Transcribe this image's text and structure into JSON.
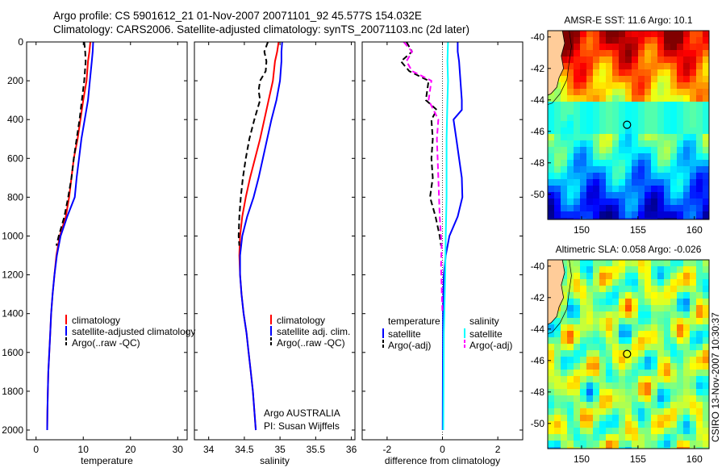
{
  "figure": {
    "title_line1": "Argo profile: CS 5901612_21 01-Nov-2007 20071101_92 45.577S 154.032E",
    "title_line2": "Climatology: CARS2006. Satellite-adjusted climatology: synTS_20071103.nc (2d later)",
    "side_label": "CSIRO 13-Nov-2007 10:30:37",
    "colors": {
      "climatology": "#ff0000",
      "satellite": "#0000ff",
      "argo": "#000000",
      "sal_satellite": "#00ffff",
      "sal_argo": "#ff00ff",
      "coast": "#ffcc99"
    }
  },
  "chart_data": [
    {
      "type": "line",
      "xlabel": "temperature",
      "xticks": [
        0,
        10,
        20,
        30
      ],
      "xlim": [
        -2,
        32
      ],
      "yticks": [
        0,
        200,
        400,
        600,
        800,
        1000,
        1200,
        1400,
        1600,
        1800,
        2000
      ],
      "ylim": [
        2050,
        0
      ],
      "y_reversed": true,
      "legend": [
        "climatology",
        "satellite-adjusted climatology",
        "Argo(..raw -QC)"
      ],
      "series": [
        {
          "name": "climatology",
          "color": "#ff0000",
          "style": "solid",
          "points": [
            [
              11.5,
              0
            ],
            [
              11.3,
              50
            ],
            [
              11.0,
              100
            ],
            [
              10.7,
              200
            ],
            [
              10.0,
              300
            ],
            [
              9.4,
              400
            ],
            [
              8.8,
              500
            ],
            [
              8.0,
              600
            ],
            [
              7.5,
              700
            ],
            [
              7.0,
              800
            ],
            [
              6.3,
              900
            ],
            [
              5.0,
              1000
            ],
            [
              4.3,
              1100
            ],
            [
              3.9,
              1200
            ],
            [
              3.5,
              1300
            ],
            [
              3.2,
              1400
            ],
            [
              3.0,
              1500
            ],
            [
              2.8,
              1600
            ],
            [
              2.6,
              1700
            ],
            [
              2.5,
              1800
            ],
            [
              2.4,
              1900
            ],
            [
              2.35,
              2000
            ]
          ]
        },
        {
          "name": "satellite-adjusted climatology",
          "color": "#0000ff",
          "style": "solid",
          "points": [
            [
              12.1,
              0
            ],
            [
              12.0,
              50
            ],
            [
              11.8,
              100
            ],
            [
              11.4,
              200
            ],
            [
              11.0,
              300
            ],
            [
              10.3,
              400
            ],
            [
              9.6,
              500
            ],
            [
              9.1,
              600
            ],
            [
              8.6,
              700
            ],
            [
              8.2,
              800
            ],
            [
              6.6,
              900
            ],
            [
              5.2,
              1000
            ],
            [
              4.4,
              1100
            ],
            [
              3.9,
              1200
            ],
            [
              3.5,
              1300
            ],
            [
              3.2,
              1400
            ],
            [
              3.0,
              1500
            ],
            [
              2.8,
              1600
            ],
            [
              2.6,
              1700
            ],
            [
              2.5,
              1800
            ],
            [
              2.4,
              1900
            ],
            [
              2.35,
              2000
            ]
          ]
        },
        {
          "name": "Argo(..raw -QC)",
          "color": "#000000",
          "style": "dashed",
          "points": [
            [
              10.2,
              0
            ],
            [
              10.4,
              50
            ],
            [
              10.5,
              100
            ],
            [
              10.2,
              200
            ],
            [
              9.7,
              300
            ],
            [
              9.2,
              400
            ],
            [
              8.6,
              500
            ],
            [
              8.0,
              600
            ],
            [
              7.5,
              700
            ],
            [
              6.8,
              800
            ],
            [
              6.0,
              900
            ],
            [
              4.8,
              1000
            ],
            [
              4.3,
              1050
            ]
          ]
        }
      ]
    },
    {
      "type": "line",
      "xlabel": "salinity",
      "xticks": [
        34,
        34.5,
        35,
        35.5,
        36
      ],
      "xlim": [
        33.8,
        36.05
      ],
      "yticks": [
        0,
        200,
        400,
        600,
        800,
        1000,
        1200,
        1400,
        1600,
        1800,
        2000
      ],
      "ylim": [
        2050,
        0
      ],
      "y_reversed": true,
      "legend": [
        "climatology",
        "satellite adj. clim.",
        "Argo(..raw -QC)"
      ],
      "annotations": [
        "Argo AUSTRALIA",
        "PI: Susan Wijffels"
      ],
      "series": [
        {
          "name": "climatology",
          "color": "#ff0000",
          "style": "solid",
          "points": [
            [
              34.98,
              0
            ],
            [
              34.96,
              50
            ],
            [
              34.93,
              100
            ],
            [
              34.9,
              200
            ],
            [
              34.84,
              300
            ],
            [
              34.78,
              400
            ],
            [
              34.72,
              500
            ],
            [
              34.65,
              600
            ],
            [
              34.58,
              700
            ],
            [
              34.52,
              800
            ],
            [
              34.47,
              900
            ],
            [
              34.44,
              1000
            ],
            [
              34.43,
              1100
            ],
            [
              34.44,
              1200
            ],
            [
              34.46,
              1300
            ],
            [
              34.49,
              1400
            ],
            [
              34.53,
              1500
            ],
            [
              34.56,
              1600
            ],
            [
              34.59,
              1700
            ],
            [
              34.62,
              1800
            ],
            [
              34.64,
              1900
            ],
            [
              34.66,
              2000
            ]
          ]
        },
        {
          "name": "satellite adj. clim.",
          "color": "#0000ff",
          "style": "solid",
          "points": [
            [
              35.03,
              0
            ],
            [
              35.02,
              50
            ],
            [
              35.02,
              100
            ],
            [
              35.0,
              200
            ],
            [
              34.95,
              300
            ],
            [
              34.88,
              400
            ],
            [
              34.82,
              500
            ],
            [
              34.76,
              600
            ],
            [
              34.7,
              700
            ],
            [
              34.63,
              800
            ],
            [
              34.54,
              900
            ],
            [
              34.47,
              1000
            ],
            [
              34.44,
              1100
            ],
            [
              34.44,
              1200
            ],
            [
              34.46,
              1300
            ],
            [
              34.49,
              1400
            ],
            [
              34.53,
              1500
            ],
            [
              34.56,
              1600
            ],
            [
              34.59,
              1700
            ],
            [
              34.62,
              1800
            ],
            [
              34.64,
              1900
            ],
            [
              34.66,
              2000
            ]
          ]
        },
        {
          "name": "Argo(..raw -QC)",
          "color": "#000000",
          "style": "dashed",
          "points": [
            [
              34.83,
              0
            ],
            [
              34.78,
              50
            ],
            [
              34.81,
              100
            ],
            [
              34.8,
              150
            ],
            [
              34.72,
              200
            ],
            [
              34.7,
              250
            ],
            [
              34.72,
              300
            ],
            [
              34.64,
              400
            ],
            [
              34.57,
              500
            ],
            [
              34.52,
              600
            ],
            [
              34.48,
              700
            ],
            [
              34.45,
              800
            ],
            [
              34.43,
              900
            ],
            [
              34.42,
              1000
            ],
            [
              34.43,
              1050
            ]
          ]
        }
      ]
    },
    {
      "type": "line",
      "xlabel": "difference from climatology",
      "xticks": [
        -2,
        0,
        2
      ],
      "xlim": [
        -2.9,
        2.9
      ],
      "yticks": [
        0,
        200,
        400,
        600,
        800,
        1000,
        1200,
        1400,
        1600,
        1800,
        2000
      ],
      "ylim": [
        2050,
        0
      ],
      "y_reversed": true,
      "legend_titles": [
        "temperature",
        "salinity"
      ],
      "legend": [
        "satellite",
        "Argo(-adj)",
        "satellite",
        "Argo(-adj)"
      ],
      "series": [
        {
          "name": "temperature satellite",
          "color": "#0000ff",
          "style": "solid",
          "points": [
            [
              0.55,
              0
            ],
            [
              0.55,
              50
            ],
            [
              0.6,
              100
            ],
            [
              0.65,
              200
            ],
            [
              0.7,
              300
            ],
            [
              0.7,
              350
            ],
            [
              0.4,
              400
            ],
            [
              0.5,
              500
            ],
            [
              0.6,
              600
            ],
            [
              0.7,
              700
            ],
            [
              0.72,
              800
            ],
            [
              0.55,
              900
            ],
            [
              0.25,
              1000
            ],
            [
              0.12,
              1100
            ],
            [
              0.05,
              1200
            ],
            [
              0.02,
              1400
            ],
            [
              0.01,
              2000
            ]
          ]
        },
        {
          "name": "temperature Argo(-adj)",
          "color": "#000000",
          "style": "dashed",
          "points": [
            [
              -1.3,
              0
            ],
            [
              -1.1,
              50
            ],
            [
              -1.5,
              100
            ],
            [
              -1.2,
              150
            ],
            [
              -0.5,
              200
            ],
            [
              -0.6,
              300
            ],
            [
              -0.2,
              350
            ],
            [
              -0.4,
              400
            ],
            [
              -0.35,
              500
            ],
            [
              -0.4,
              600
            ],
            [
              -0.35,
              700
            ],
            [
              -0.45,
              800
            ],
            [
              -0.25,
              900
            ],
            [
              -0.1,
              1000
            ],
            [
              -0.05,
              1050
            ]
          ]
        },
        {
          "name": "salinity satellite",
          "color": "#00ffff",
          "style": "solid",
          "points": [
            [
              0.2,
              0
            ],
            [
              0.18,
              100
            ],
            [
              0.2,
              200
            ],
            [
              0.18,
              300
            ],
            [
              0.15,
              500
            ],
            [
              0.15,
              800
            ],
            [
              0.12,
              1000
            ],
            [
              0.1,
              1200
            ],
            [
              0.05,
              1500
            ],
            [
              0.03,
              2000
            ]
          ]
        },
        {
          "name": "salinity Argo(-adj)",
          "color": "#ff00ff",
          "style": "dashed",
          "points": [
            [
              -1.4,
              0
            ],
            [
              -1.1,
              50
            ],
            [
              -1.3,
              100
            ],
            [
              -1.1,
              150
            ],
            [
              -0.4,
              200
            ],
            [
              -0.5,
              300
            ],
            [
              -0.15,
              400
            ],
            [
              -0.2,
              500
            ],
            [
              -0.15,
              700
            ],
            [
              -0.1,
              900
            ],
            [
              -0.03,
              1050
            ],
            [
              -0.05,
              1150
            ],
            [
              -0.02,
              1300
            ],
            [
              0,
              1400
            ]
          ]
        }
      ]
    },
    {
      "type": "heatmap",
      "title": "AMSR-E SST: 11.6 Argo: 10.1",
      "xticks": [
        150,
        155,
        160
      ],
      "xlim": [
        147,
        161.3
      ],
      "yticks": [
        -40,
        -42,
        -44,
        -46,
        -48,
        -50
      ],
      "ylim": [
        -51.6,
        -39.6
      ],
      "marker": [
        154.03,
        -45.58
      ]
    },
    {
      "type": "heatmap",
      "title": "Altimetric SLA: 0.058 Argo: -0.026",
      "xticks": [
        150,
        155,
        160
      ],
      "xlim": [
        147,
        161.3
      ],
      "yticks": [
        -40,
        -42,
        -44,
        -46,
        -48,
        -50
      ],
      "ylim": [
        -51.6,
        -39.6
      ],
      "marker": [
        154.03,
        -45.58
      ]
    }
  ]
}
